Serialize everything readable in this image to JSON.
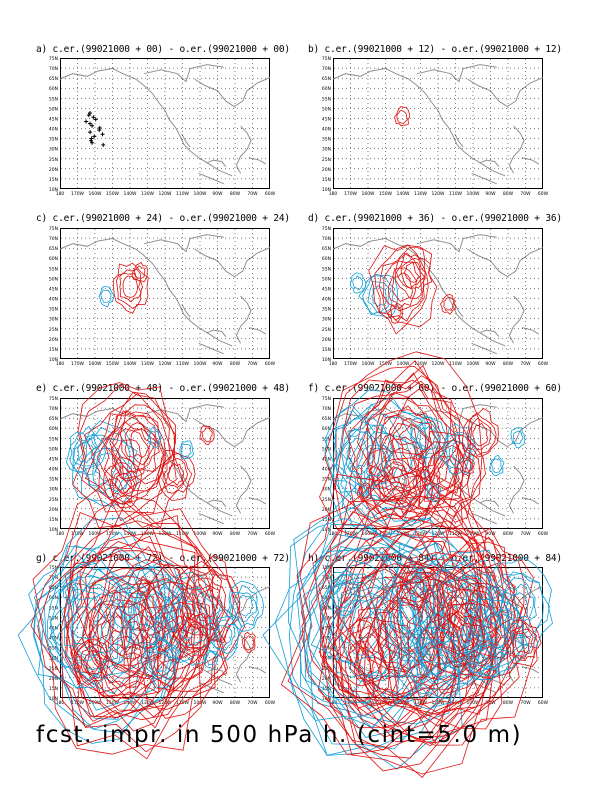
{
  "figure": {
    "caption": "fcst. impr. in 500 hPa h. (cint=5.0 m)",
    "colors": {
      "positive": "#e01010",
      "negative": "#10a0d8",
      "coast": "#909090",
      "grid": "#000000",
      "frame": "#000000",
      "marks": "#000000"
    },
    "lat_labels": [
      "75N",
      "70N",
      "65N",
      "60N",
      "55N",
      "50N",
      "45N",
      "40N",
      "35N",
      "30N",
      "25N",
      "20N",
      "15N",
      "10N"
    ],
    "lon_labels": [
      "180",
      "170W",
      "160W",
      "150W",
      "140W",
      "130W",
      "120W",
      "110W",
      "100W",
      "90W",
      "80W",
      "70W",
      "60W"
    ],
    "panels": [
      {
        "id": "a",
        "title": "a) c.er.(99021000 + 00) - o.er.(99021000 + 00)",
        "lead": 0,
        "intensity": 0
      },
      {
        "id": "b",
        "title": "b) c.er.(99021000 + 12) - o.er.(99021000 + 12)",
        "lead": 12,
        "intensity": 1
      },
      {
        "id": "c",
        "title": "c) c.er.(99021000 + 24) - o.er.(99021000 + 24)",
        "lead": 24,
        "intensity": 2
      },
      {
        "id": "d",
        "title": "d) c.er.(99021000 + 36) - o.er.(99021000 + 36)",
        "lead": 36,
        "intensity": 3
      },
      {
        "id": "e",
        "title": "e) c.er.(99021000 + 48) - o.er.(99021000 + 48)",
        "lead": 48,
        "intensity": 4
      },
      {
        "id": "f",
        "title": "f) c.er.(99021000 + 60) - o.er.(99021000 + 60)",
        "lead": 60,
        "intensity": 5
      },
      {
        "id": "g",
        "title": "g) c.er.(99021000 + 72) - o.er.(99021000 + 72)",
        "lead": 72,
        "intensity": 6
      },
      {
        "id": "h",
        "title": "h) c.er.(99021000 + 84) - o.er.(99021000 + 84)",
        "lead": 84,
        "intensity": 7
      }
    ]
  }
}
